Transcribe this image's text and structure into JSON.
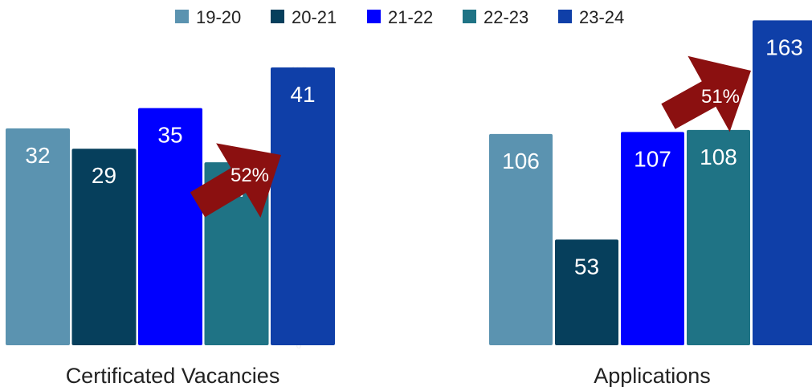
{
  "chart_data": {
    "type": "bar",
    "legend_position": "top",
    "grid": false,
    "series": [
      {
        "name": "19-20",
        "color": "#5b93b0"
      },
      {
        "name": "20-21",
        "color": "#063f5c"
      },
      {
        "name": "21-22",
        "color": "#0000ff"
      },
      {
        "name": "22-23",
        "color": "#1f7385"
      },
      {
        "name": "23-24",
        "color": "#0f3fa8"
      }
    ],
    "panels": [
      {
        "category": "Certificated Vacancies",
        "values": [
          32,
          29,
          35,
          27,
          41
        ],
        "ylim": [
          0,
          50
        ],
        "y_ticks": [
          "0",
          "100",
          "150"
        ],
        "change_label": "52%"
      },
      {
        "category": "Applications",
        "values": [
          106,
          53,
          107,
          108,
          163
        ],
        "ylim": [
          0,
          170
        ],
        "change_label": "51%"
      }
    ],
    "arrow_color": "#8b1010"
  }
}
